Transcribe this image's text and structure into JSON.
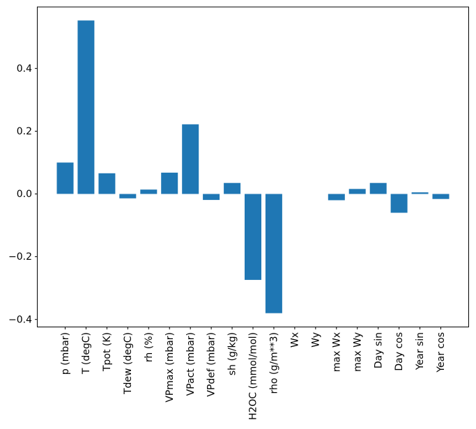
{
  "figure": {
    "background": "#ffffff"
  },
  "chart_data": {
    "type": "bar",
    "title": "",
    "xlabel": "",
    "ylabel": "",
    "categories": [
      "p (mbar)",
      "T (degC)",
      "Tpot (K)",
      "Tdew (degC)",
      "rh (%)",
      "VPmax (mbar)",
      "VPact (mbar)",
      "VPdef (mbar)",
      "sh (g/kg)",
      "H2OC (mmol/mol)",
      "rho (g/m**3)",
      "Wx",
      "Wy",
      "max Wx",
      "max Wy",
      "Day sin",
      "Day cos",
      "Year sin",
      "Year cos"
    ],
    "values": [
      0.1,
      0.553,
      0.066,
      -0.014,
      0.014,
      0.068,
      0.222,
      -0.019,
      0.035,
      -0.274,
      -0.38,
      0.0,
      0.0,
      -0.02,
      0.016,
      0.035,
      -0.06,
      0.005,
      -0.016
    ],
    "bar_color": "#1f77b4",
    "axis_color": "#000000",
    "yticks": [
      0.4,
      0.2,
      0.0,
      -0.2,
      -0.4
    ],
    "ylim": [
      -0.424,
      0.596
    ],
    "x_tick_rotation": 90,
    "grid": false,
    "legend_position": "none"
  }
}
